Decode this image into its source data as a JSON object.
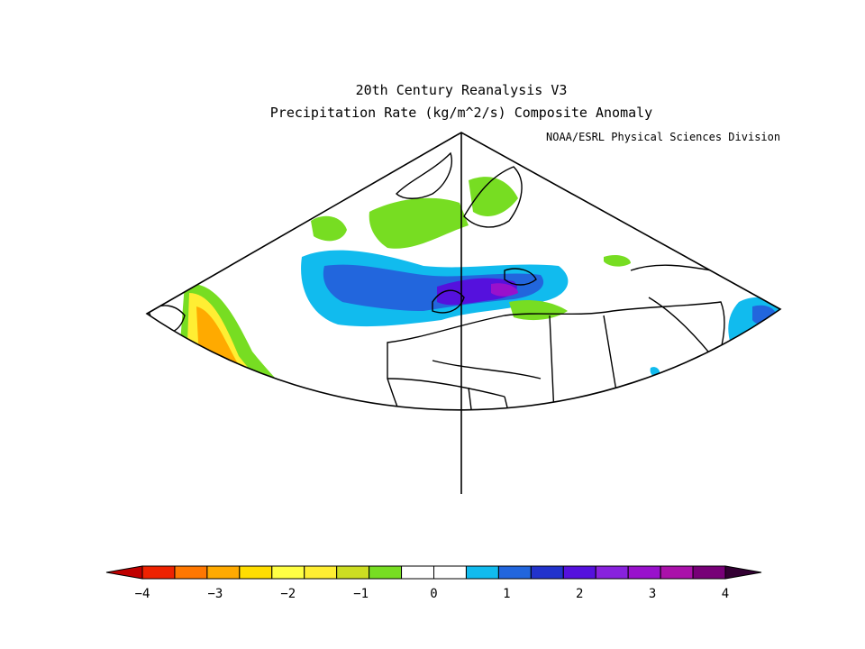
{
  "title": {
    "line1": "20th Century Reanalysis V3",
    "line2": "Precipitation Rate (kg/m^2/s) Composite Anomaly"
  },
  "credit": "NOAA/ESRL Physical Sciences Division",
  "colorbar": {
    "colors": [
      "#c00000",
      "#ee2200",
      "#ff7700",
      "#ffaa00",
      "#ffdd00",
      "#ffff44",
      "#ffee33",
      "#ccdd22",
      "#77dd22",
      "#ffffff",
      "#ffffff",
      "#11bbee",
      "#2266dd",
      "#2233cc",
      "#5511dd",
      "#8822dd",
      "#9911cc",
      "#aa11aa",
      "#770077",
      "#330033"
    ],
    "tick_labels": [
      "-4",
      "-3",
      "-2",
      "-1",
      "0",
      "1",
      "2",
      "3",
      "4"
    ]
  }
}
